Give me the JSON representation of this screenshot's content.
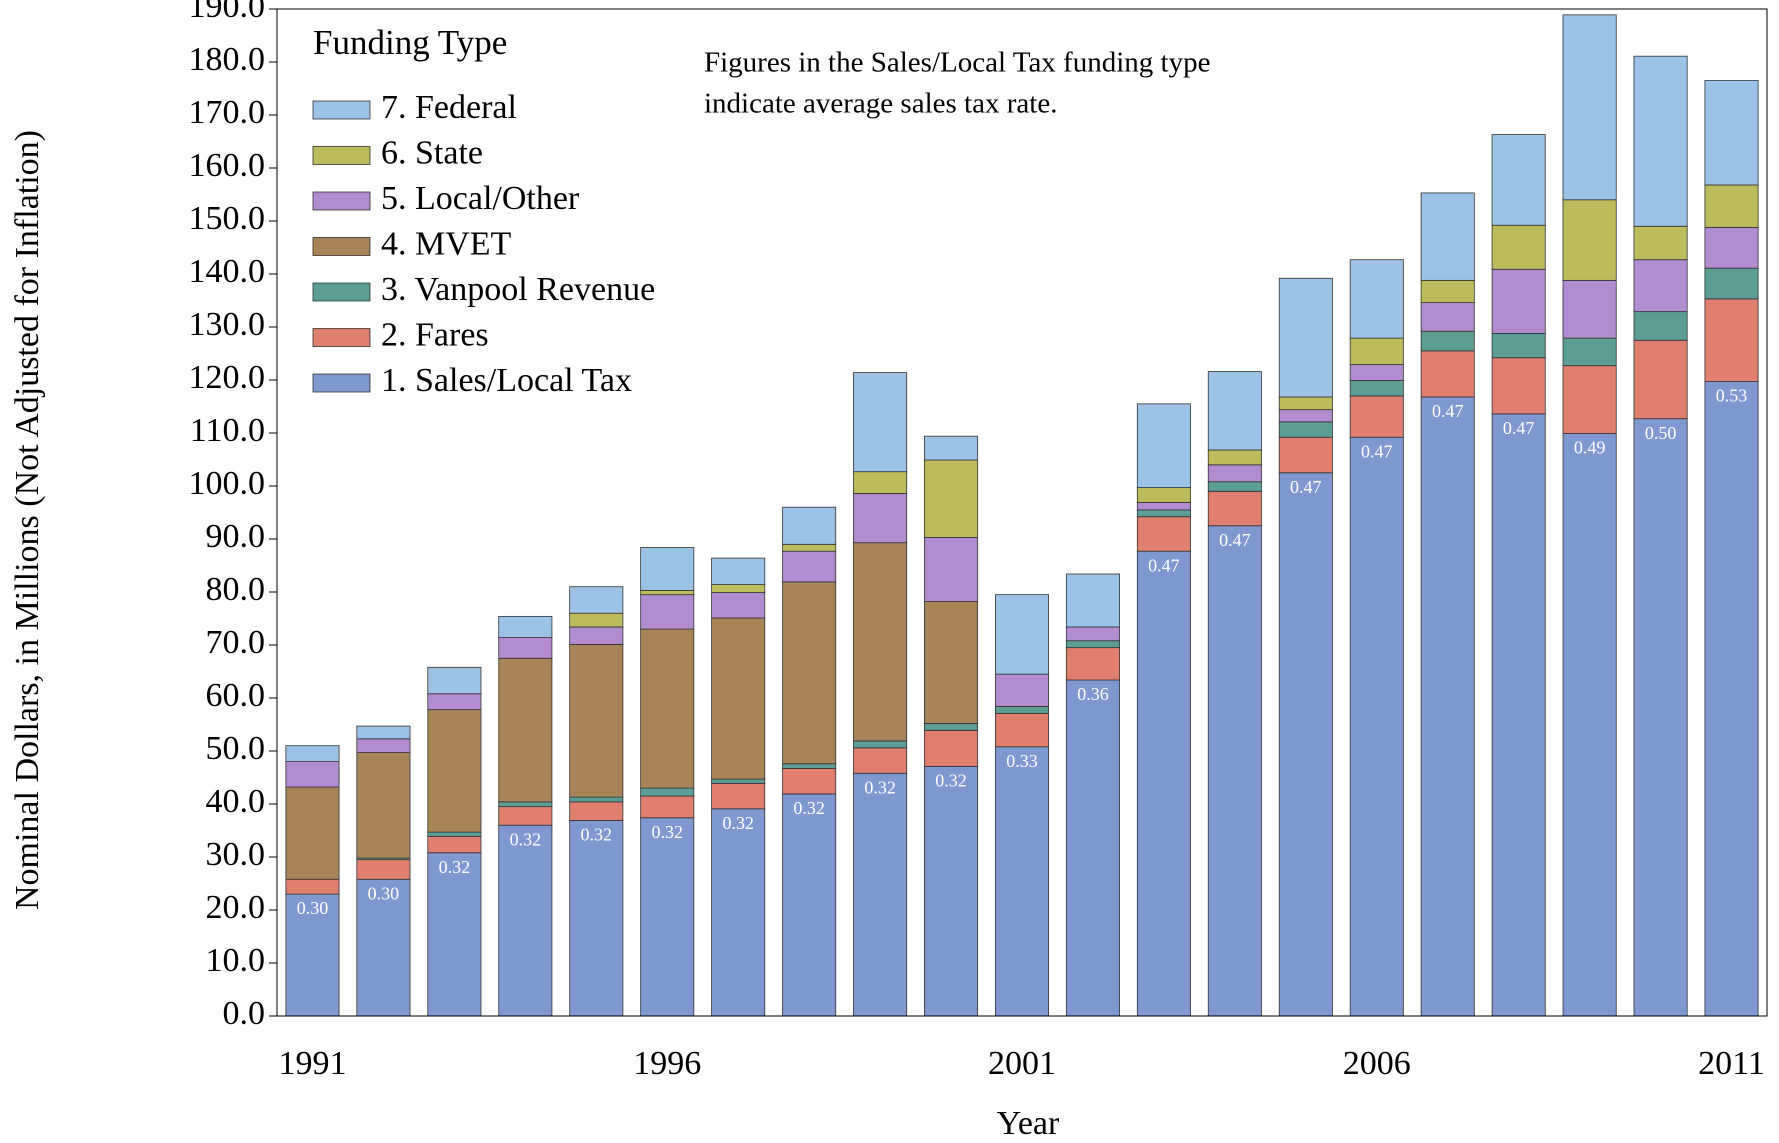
{
  "chart_data": {
    "type": "stacked_bar",
    "x_label": "Year",
    "y_label": "Nominal Dollars, in Millions (Not Adjusted for Inflation)",
    "legend_title": "Funding Type",
    "legend_position": "upper left",
    "annotation": [
      "Figures in the Sales/Local Tax funding type",
      "indicate average sales tax rate."
    ],
    "categories": [
      "1991",
      null,
      null,
      null,
      null,
      "1996",
      null,
      null,
      null,
      null,
      "2001",
      null,
      null,
      null,
      null,
      "2006",
      null,
      null,
      null,
      null,
      "2011"
    ],
    "series": [
      {
        "name": "1. Sales/Local Tax",
        "color": "#7f98cf",
        "values": [
          23.0,
          25.8,
          30.8,
          36.0,
          36.9,
          37.4,
          39.1,
          41.9,
          45.8,
          47.1,
          50.8,
          63.4,
          87.7,
          92.5,
          102.5,
          109.2,
          116.8,
          113.6,
          109.9,
          112.7,
          119.7
        ],
        "rate_labels": [
          "0.30",
          "0.30",
          "0.32",
          "0.32",
          "0.32",
          "0.32",
          "0.32",
          "0.32",
          "0.32",
          "0.32",
          "0.33",
          "0.36",
          "0.47",
          "0.47",
          "0.47",
          "0.47",
          "0.47",
          "0.47",
          "0.49",
          "0.50",
          "0.53"
        ]
      },
      {
        "name": "2. Fares",
        "color": "#e07f70",
        "values": [
          2.8,
          3.7,
          3.1,
          3.5,
          3.5,
          4.1,
          4.8,
          4.8,
          4.8,
          6.8,
          6.3,
          6.1,
          6.5,
          6.5,
          6.7,
          7.8,
          8.7,
          10.6,
          12.8,
          14.8,
          15.6
        ]
      },
      {
        "name": "3. Vanpool Revenue",
        "color": "#5c9e94",
        "values": [
          0,
          0.3,
          0.8,
          0.9,
          0.9,
          1.5,
          0.8,
          0.9,
          1.3,
          1.3,
          1.3,
          1.3,
          1.3,
          1.8,
          2.9,
          2.9,
          3.7,
          4.6,
          5.2,
          5.4,
          5.8
        ]
      },
      {
        "name": "4. MVET",
        "color": "#a88558",
        "values": [
          17.4,
          19.9,
          23.1,
          27.1,
          28.8,
          30.0,
          30.4,
          34.3,
          37.4,
          23.0,
          0,
          0,
          0,
          0,
          0,
          0,
          0,
          0,
          0,
          0,
          0
        ]
      },
      {
        "name": "5. Local/Other",
        "color": "#b28ccf",
        "values": [
          4.8,
          2.6,
          3.0,
          3.9,
          3.3,
          6.5,
          4.8,
          5.8,
          9.3,
          12.1,
          6.1,
          2.6,
          1.4,
          3.2,
          2.3,
          3.0,
          5.4,
          12.1,
          10.9,
          9.8,
          7.7
        ]
      },
      {
        "name": "6. State",
        "color": "#bcbc5c",
        "values": [
          0,
          0,
          0,
          0,
          2.6,
          0.8,
          1.5,
          1.3,
          4.1,
          14.6,
          0,
          0,
          2.8,
          2.8,
          2.4,
          5.0,
          4.2,
          8.3,
          15.2,
          6.3,
          8.0
        ]
      },
      {
        "name": "7. Federal",
        "color": "#9cc3e5",
        "values": [
          3.0,
          2.4,
          5.0,
          4.0,
          5.0,
          8.1,
          5.0,
          7.0,
          18.7,
          4.5,
          15.0,
          10.0,
          15.8,
          14.8,
          22.4,
          14.8,
          16.5,
          17.1,
          34.9,
          32.1,
          19.7
        ]
      }
    ],
    "ylim": [
      0,
      190
    ],
    "yticks": [
      {
        "value": 0,
        "label": "0.0"
      },
      {
        "value": 10,
        "label": "10.0"
      },
      {
        "value": 20,
        "label": "20.0"
      },
      {
        "value": 30,
        "label": "30.0"
      },
      {
        "value": 40,
        "label": "40.0"
      },
      {
        "value": 50,
        "label": "50.0"
      },
      {
        "value": 60,
        "label": "60.0"
      },
      {
        "value": 70,
        "label": "70.0"
      },
      {
        "value": 80,
        "label": "80.0"
      },
      {
        "value": 90,
        "label": "90.0"
      },
      {
        "value": 100,
        "label": "100.0"
      },
      {
        "value": 110,
        "label": "110.0"
      },
      {
        "value": 120,
        "label": "120.0"
      },
      {
        "value": 130,
        "label": "130.0"
      },
      {
        "value": 140,
        "label": "140.0"
      },
      {
        "value": 150,
        "label": "150.0"
      },
      {
        "value": 160,
        "label": "160.0"
      },
      {
        "value": 170,
        "label": "170.0"
      },
      {
        "value": 180,
        "label": "180.0"
      },
      {
        "value": 190,
        "label": "190.0"
      }
    ],
    "grid": false
  }
}
